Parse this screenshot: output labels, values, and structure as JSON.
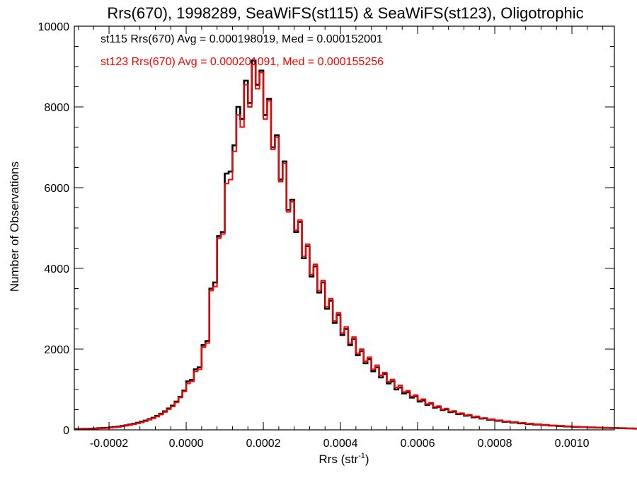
{
  "chart_data": {
    "type": "histogram",
    "title": "Rrs(670), 1998289, SeaWiFS(st115) & SeaWiFS(st123), Oligotrophic",
    "xlabel": "Rrs (str",
    "xlabel_sup": "-1",
    "xlabel_suffix": ")",
    "ylabel": "Number of Observations",
    "xlim": [
      -0.00029,
      0.00111
    ],
    "ylim": [
      0,
      10000
    ],
    "bin_width": 1e-05,
    "x_ticks": [
      -0.0002,
      0.0,
      0.0002,
      0.0004,
      0.0006,
      0.0008,
      0.001
    ],
    "x_tick_labels": [
      "-0.0002",
      "0.0000",
      "0.0002",
      "0.0004",
      "0.0006",
      "0.0008",
      "0.0010"
    ],
    "y_ticks": [
      0,
      2000,
      4000,
      6000,
      8000,
      10000
    ],
    "y_tick_labels": [
      "0",
      "2000",
      "4000",
      "6000",
      "8000",
      "10000"
    ],
    "x_start": -0.00029,
    "series": [
      {
        "name": "st115",
        "color": "#000000",
        "legend": "st115 Rrs(670) Avg = 0.000198019, Med = 0.000152001",
        "values": [
          20,
          20,
          25,
          25,
          30,
          35,
          40,
          45,
          50,
          60,
          70,
          80,
          95,
          110,
          130,
          150,
          175,
          200,
          230,
          265,
          300,
          345,
          400,
          460,
          530,
          600,
          700,
          820,
          970,
          1200,
          1240,
          1500,
          1550,
          2100,
          2200,
          3500,
          3650,
          4800,
          4900,
          6350,
          6400,
          7050,
          8000,
          7700,
          8650,
          8100,
          9150,
          8550,
          8900,
          7800,
          8200,
          7000,
          7300,
          6200,
          6650,
          5450,
          5700,
          4900,
          5150,
          4250,
          4550,
          3800,
          4050,
          3400,
          3650,
          3000,
          3200,
          2650,
          2850,
          2350,
          2500,
          2100,
          2250,
          1850,
          1950,
          1650,
          1750,
          1450,
          1550,
          1300,
          1380,
          1150,
          1200,
          1000,
          1050,
          900,
          930,
          800,
          830,
          700,
          730,
          620,
          650,
          550,
          570,
          490,
          510,
          440,
          450,
          390,
          400,
          350,
          360,
          310,
          320,
          280,
          285,
          250,
          255,
          225,
          230,
          200,
          205,
          180,
          185,
          160,
          165,
          145,
          150,
          130,
          135,
          120,
          120,
          105,
          105,
          95,
          95,
          85,
          85,
          75,
          75,
          68,
          68,
          60,
          60,
          55,
          55,
          50,
          50,
          45,
          45,
          40,
          40,
          35,
          35,
          32,
          32,
          28,
          28,
          25
        ]
      },
      {
        "name": "st123",
        "color": "#ff0000",
        "legend": "st123 Rrs(670) Avg = 0.000201091, Med = 0.000155256",
        "values": [
          15,
          15,
          20,
          20,
          25,
          30,
          32,
          38,
          42,
          50,
          60,
          70,
          85,
          100,
          120,
          140,
          160,
          185,
          215,
          250,
          285,
          330,
          380,
          440,
          510,
          580,
          680,
          800,
          950,
          1150,
          1200,
          1450,
          1500,
          2050,
          2150,
          3450,
          3550,
          4750,
          4850,
          6100,
          6200,
          6900,
          7800,
          7500,
          8550,
          8000,
          9050,
          8450,
          8850,
          7700,
          8150,
          6950,
          7250,
          6150,
          6600,
          5400,
          5650,
          4950,
          5200,
          4300,
          4600,
          3850,
          4100,
          3450,
          3700,
          3050,
          3250,
          2700,
          2900,
          2400,
          2550,
          2150,
          2300,
          1900,
          2000,
          1700,
          1800,
          1500,
          1600,
          1350,
          1420,
          1200,
          1250,
          1050,
          1100,
          940,
          970,
          830,
          860,
          730,
          760,
          640,
          670,
          570,
          590,
          510,
          530,
          455,
          470,
          405,
          415,
          365,
          375,
          325,
          335,
          290,
          295,
          260,
          265,
          235,
          240,
          210,
          215,
          190,
          195,
          170,
          175,
          150,
          155,
          135,
          140,
          125,
          125,
          110,
          110,
          100,
          100,
          88,
          88,
          78,
          78,
          70,
          70,
          62,
          62,
          57,
          57,
          52,
          52,
          47,
          47,
          42,
          42,
          37,
          37,
          33,
          33,
          29,
          29,
          26
        ]
      }
    ]
  }
}
